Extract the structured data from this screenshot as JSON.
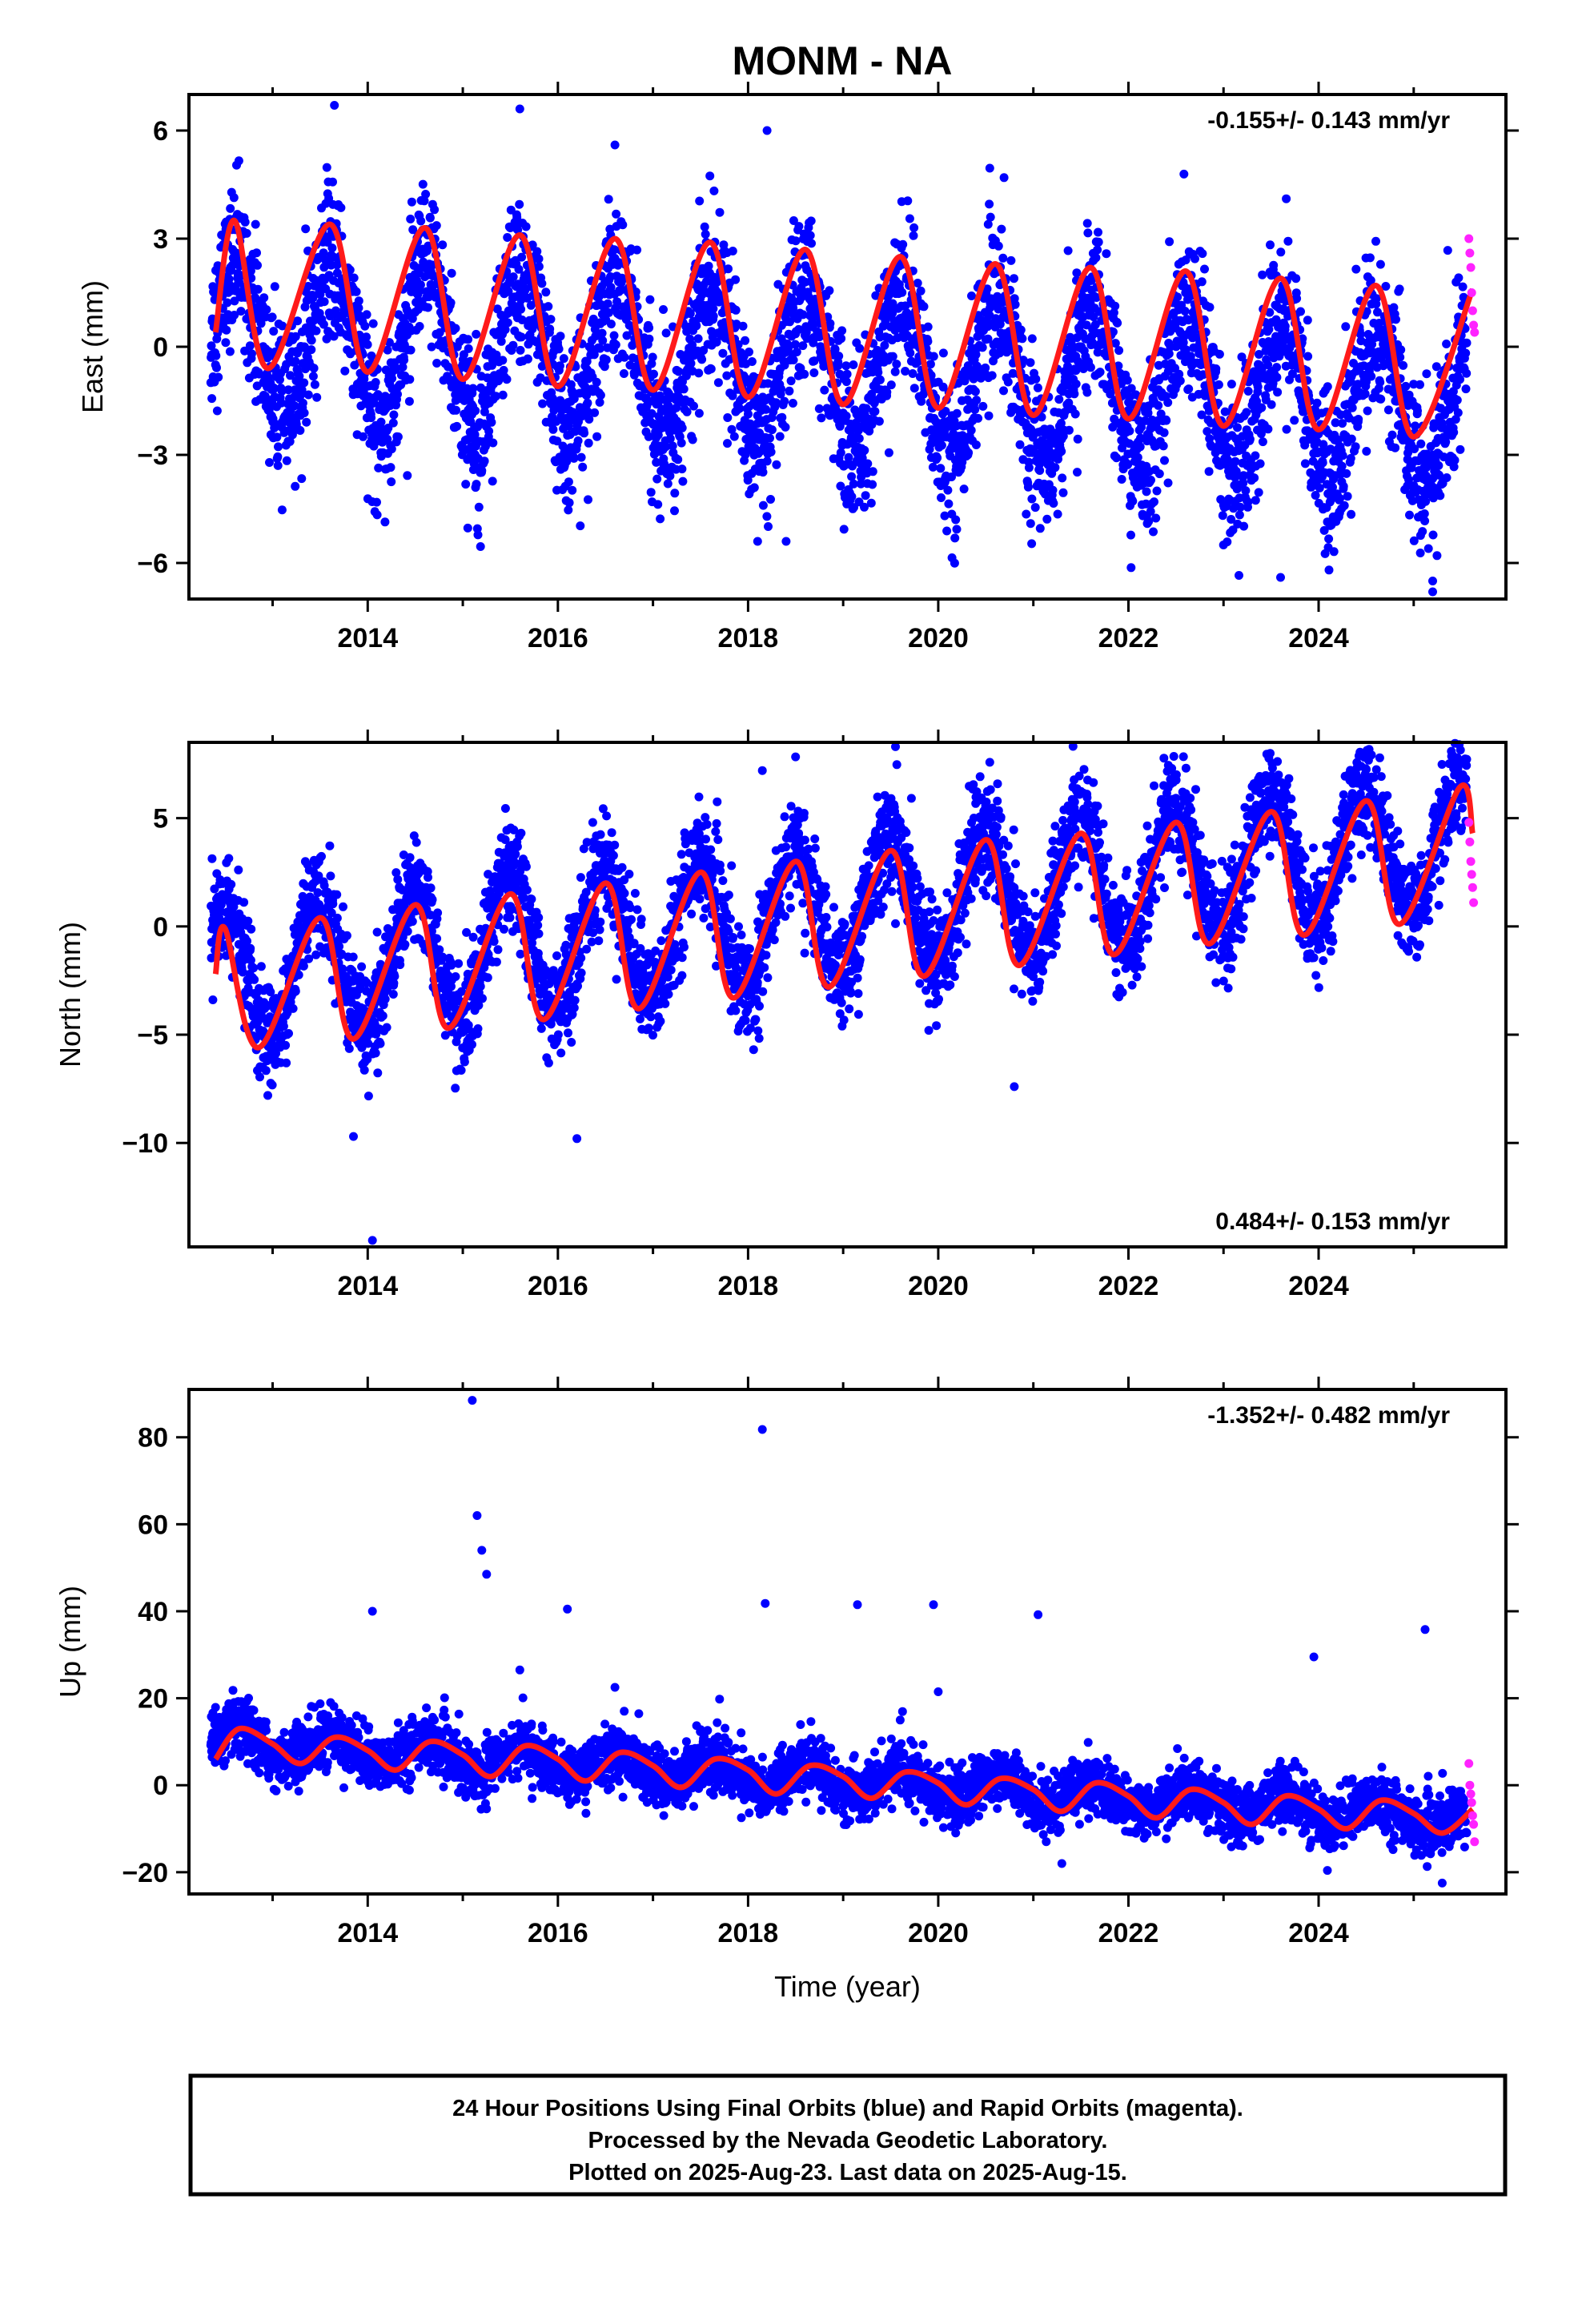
{
  "title": "MONM - NA",
  "colors": {
    "final_orbits": "#0000ff",
    "rapid_orbits": "#ff22ff",
    "model": "#ff1a1a",
    "frame": "#000000"
  },
  "footer": {
    "line1": "24 Hour Positions Using Final Orbits (blue) and Rapid Orbits (magenta).",
    "line2": "Processed by the Nevada Geodetic Laboratory.",
    "line3": "Plotted on 2025-Aug-23. Last data on 2025-Aug-15."
  },
  "chart_data": [
    {
      "type": "scatter",
      "panel": "east",
      "ylabel": "East (mm)",
      "xlabel": "",
      "rate_text": "-0.155+/- 0.143 mm/yr",
      "rate_position": "top-right",
      "xlim": [
        2012.12,
        2025.97
      ],
      "ylim": [
        -7.0,
        7.0
      ],
      "xticks": [
        2014,
        2016,
        2018,
        2020,
        2022,
        2024
      ],
      "yticks": [
        -6,
        -3,
        0,
        3,
        6
      ],
      "trend": {
        "slope_mm_per_yr": -0.155,
        "value_at_2012_4": 0.35,
        "seasonal_amplitude": 2.1,
        "peak_phase_yr": 0.62,
        "scatter_sd": 1.05
      },
      "model_series": [
        [
          2012.4,
          0.4
        ],
        [
          2012.6,
          3.5
        ],
        [
          2012.95,
          -0.6
        ],
        [
          2013.6,
          3.4
        ],
        [
          2014.0,
          -0.7
        ],
        [
          2014.6,
          3.3
        ],
        [
          2015.0,
          -0.9
        ],
        [
          2015.6,
          3.1
        ],
        [
          2016.0,
          -1.1
        ],
        [
          2016.6,
          3.0
        ],
        [
          2017.0,
          -1.2
        ],
        [
          2017.6,
          2.9
        ],
        [
          2018.0,
          -1.4
        ],
        [
          2018.6,
          2.7
        ],
        [
          2019.0,
          -1.6
        ],
        [
          2019.6,
          2.5
        ],
        [
          2020.0,
          -1.7
        ],
        [
          2020.6,
          2.3
        ],
        [
          2021.0,
          -1.9
        ],
        [
          2021.6,
          2.2
        ],
        [
          2022.0,
          -2.0
        ],
        [
          2022.6,
          2.1
        ],
        [
          2023.0,
          -2.2
        ],
        [
          2023.6,
          1.9
        ],
        [
          2024.0,
          -2.3
        ],
        [
          2024.6,
          1.7
        ],
        [
          2025.0,
          -2.5
        ],
        [
          2025.62,
          1.6
        ]
      ],
      "outliers": [
        [
          2013.65,
          6.7
        ],
        [
          2015.6,
          6.6
        ],
        [
          2016.6,
          5.6
        ],
        [
          2018.2,
          6.0
        ],
        [
          2018.1,
          -5.4
        ],
        [
          2018.4,
          -5.4
        ],
        [
          2023.0,
          -5.5
        ],
        [
          2023.6,
          -6.4
        ],
        [
          2025.2,
          -6.5
        ],
        [
          2025.2,
          -6.8
        ]
      ],
      "rapid_points": [
        [
          2025.58,
          3.0
        ],
        [
          2025.59,
          2.6
        ],
        [
          2025.6,
          2.2
        ],
        [
          2025.61,
          1.5
        ],
        [
          2025.62,
          1.0
        ],
        [
          2025.63,
          0.6
        ],
        [
          2025.64,
          0.4
        ]
      ]
    },
    {
      "type": "scatter",
      "panel": "north",
      "ylabel": "North (mm)",
      "xlabel": "",
      "rate_text": "0.484+/- 0.153 mm/yr",
      "rate_position": "bottom-right",
      "xlim": [
        2012.12,
        2025.97
      ],
      "ylim": [
        -14.8,
        8.5
      ],
      "xticks": [
        2014,
        2016,
        2018,
        2020,
        2022,
        2024
      ],
      "yticks": [
        -10,
        -5,
        0,
        5
      ],
      "trend": {
        "slope_mm_per_yr": 0.484,
        "value_at_2012_4": -2.4,
        "seasonal_amplitude": 3.0,
        "peak_phase_yr": 0.48,
        "scatter_sd": 1.2
      },
      "model_series": [
        [
          2012.4,
          -2.2
        ],
        [
          2012.5,
          -0.1
        ],
        [
          2012.85,
          -5.6
        ],
        [
          2013.5,
          0.4
        ],
        [
          2013.85,
          -5.2
        ],
        [
          2014.5,
          1.0
        ],
        [
          2014.85,
          -4.7
        ],
        [
          2015.5,
          1.5
        ],
        [
          2015.85,
          -4.3
        ],
        [
          2016.5,
          2.0
        ],
        [
          2016.85,
          -3.8
        ],
        [
          2017.5,
          2.5
        ],
        [
          2017.85,
          -3.3
        ],
        [
          2018.5,
          3.0
        ],
        [
          2018.85,
          -2.8
        ],
        [
          2019.5,
          3.5
        ],
        [
          2019.85,
          -2.3
        ],
        [
          2020.5,
          4.0
        ],
        [
          2020.85,
          -1.8
        ],
        [
          2021.5,
          4.3
        ],
        [
          2021.85,
          -1.3
        ],
        [
          2022.5,
          4.8
        ],
        [
          2022.85,
          -0.8
        ],
        [
          2023.5,
          5.3
        ],
        [
          2023.85,
          -0.4
        ],
        [
          2024.5,
          5.8
        ],
        [
          2024.85,
          0.1
        ],
        [
          2025.48,
          6.4
        ],
        [
          2025.62,
          4.3
        ]
      ],
      "outliers": [
        [
          2013.85,
          -9.7
        ],
        [
          2014.05,
          -14.5
        ],
        [
          2016.2,
          -9.8
        ],
        [
          2018.15,
          7.2
        ],
        [
          2019.55,
          8.3
        ],
        [
          2020.8,
          -7.4
        ],
        [
          2019.9,
          -4.8
        ]
      ],
      "rapid_points": [
        [
          2025.58,
          4.8
        ],
        [
          2025.59,
          3.9
        ],
        [
          2025.6,
          3.0
        ],
        [
          2025.61,
          2.4
        ],
        [
          2025.62,
          1.8
        ],
        [
          2025.63,
          1.1
        ]
      ]
    },
    {
      "type": "scatter",
      "panel": "up",
      "ylabel": "Up (mm)",
      "xlabel": "Time (year)",
      "rate_text": "-1.352+/- 0.482 mm/yr",
      "rate_position": "top-right",
      "xlim": [
        2012.12,
        2025.97
      ],
      "ylim": [
        -25,
        91
      ],
      "xticks": [
        2014,
        2016,
        2018,
        2020,
        2022,
        2024
      ],
      "yticks": [
        -20,
        0,
        20,
        40,
        60,
        80
      ],
      "trend": {
        "slope_mm_per_yr": -1.352,
        "value_at_2012_4": 10.0,
        "seasonal_amplitude": 3.0,
        "peak_phase_yr": 0.62,
        "scatter_sd": 3.2
      },
      "model_series": [
        [
          2012.4,
          6.0
        ],
        [
          2012.65,
          13.0
        ],
        [
          2013.0,
          9.5
        ],
        [
          2013.3,
          5.0
        ],
        [
          2013.65,
          11.0
        ],
        [
          2014.0,
          8.0
        ],
        [
          2014.3,
          3.5
        ],
        [
          2014.65,
          10.0
        ],
        [
          2015.0,
          7.0
        ],
        [
          2015.3,
          2.0
        ],
        [
          2015.65,
          9.0
        ],
        [
          2016.0,
          6.0
        ],
        [
          2016.3,
          1.0
        ],
        [
          2016.65,
          7.5
        ],
        [
          2017.0,
          4.5
        ],
        [
          2017.3,
          -0.5
        ],
        [
          2017.65,
          6.0
        ],
        [
          2018.0,
          3.5
        ],
        [
          2018.3,
          -2.0
        ],
        [
          2018.65,
          4.5
        ],
        [
          2019.0,
          2.0
        ],
        [
          2019.3,
          -3.0
        ],
        [
          2019.65,
          3.0
        ],
        [
          2020.0,
          0.5
        ],
        [
          2020.3,
          -4.5
        ],
        [
          2020.65,
          1.5
        ],
        [
          2021.0,
          -1.0
        ],
        [
          2021.3,
          -6.0
        ],
        [
          2021.65,
          0.5
        ],
        [
          2022.0,
          -2.5
        ],
        [
          2022.3,
          -7.5
        ],
        [
          2022.65,
          -1.0
        ],
        [
          2023.0,
          -4.0
        ],
        [
          2023.3,
          -9.0
        ],
        [
          2023.65,
          -2.5
        ],
        [
          2024.0,
          -5.5
        ],
        [
          2024.3,
          -10.0
        ],
        [
          2024.65,
          -3.5
        ],
        [
          2025.0,
          -6.5
        ],
        [
          2025.3,
          -11.0
        ],
        [
          2025.62,
          -5.5
        ]
      ],
      "outliers": [
        [
          2015.1,
          88.5
        ],
        [
          2015.15,
          62.0
        ],
        [
          2015.2,
          54.0
        ],
        [
          2015.25,
          48.5
        ],
        [
          2014.05,
          40.0
        ],
        [
          2016.1,
          40.5
        ],
        [
          2018.15,
          81.8
        ],
        [
          2018.18,
          41.8
        ],
        [
          2019.15,
          41.5
        ],
        [
          2019.95,
          41.5
        ],
        [
          2020.0,
          21.5
        ],
        [
          2021.05,
          39.2
        ],
        [
          2023.95,
          29.5
        ],
        [
          2025.12,
          35.8
        ],
        [
          2015.6,
          26.5
        ],
        [
          2016.6,
          22.5
        ],
        [
          2017.7,
          19.8
        ],
        [
          2021.3,
          -18.0
        ],
        [
          2025.3,
          -22.5
        ],
        [
          2019.6,
          15.0
        ]
      ],
      "rapid_points": [
        [
          2025.58,
          5.0
        ],
        [
          2025.59,
          0.0
        ],
        [
          2025.6,
          -2.0
        ],
        [
          2025.61,
          -4.0
        ],
        [
          2025.62,
          -7.0
        ],
        [
          2025.63,
          -9.0
        ],
        [
          2025.64,
          -13.0
        ]
      ]
    }
  ]
}
